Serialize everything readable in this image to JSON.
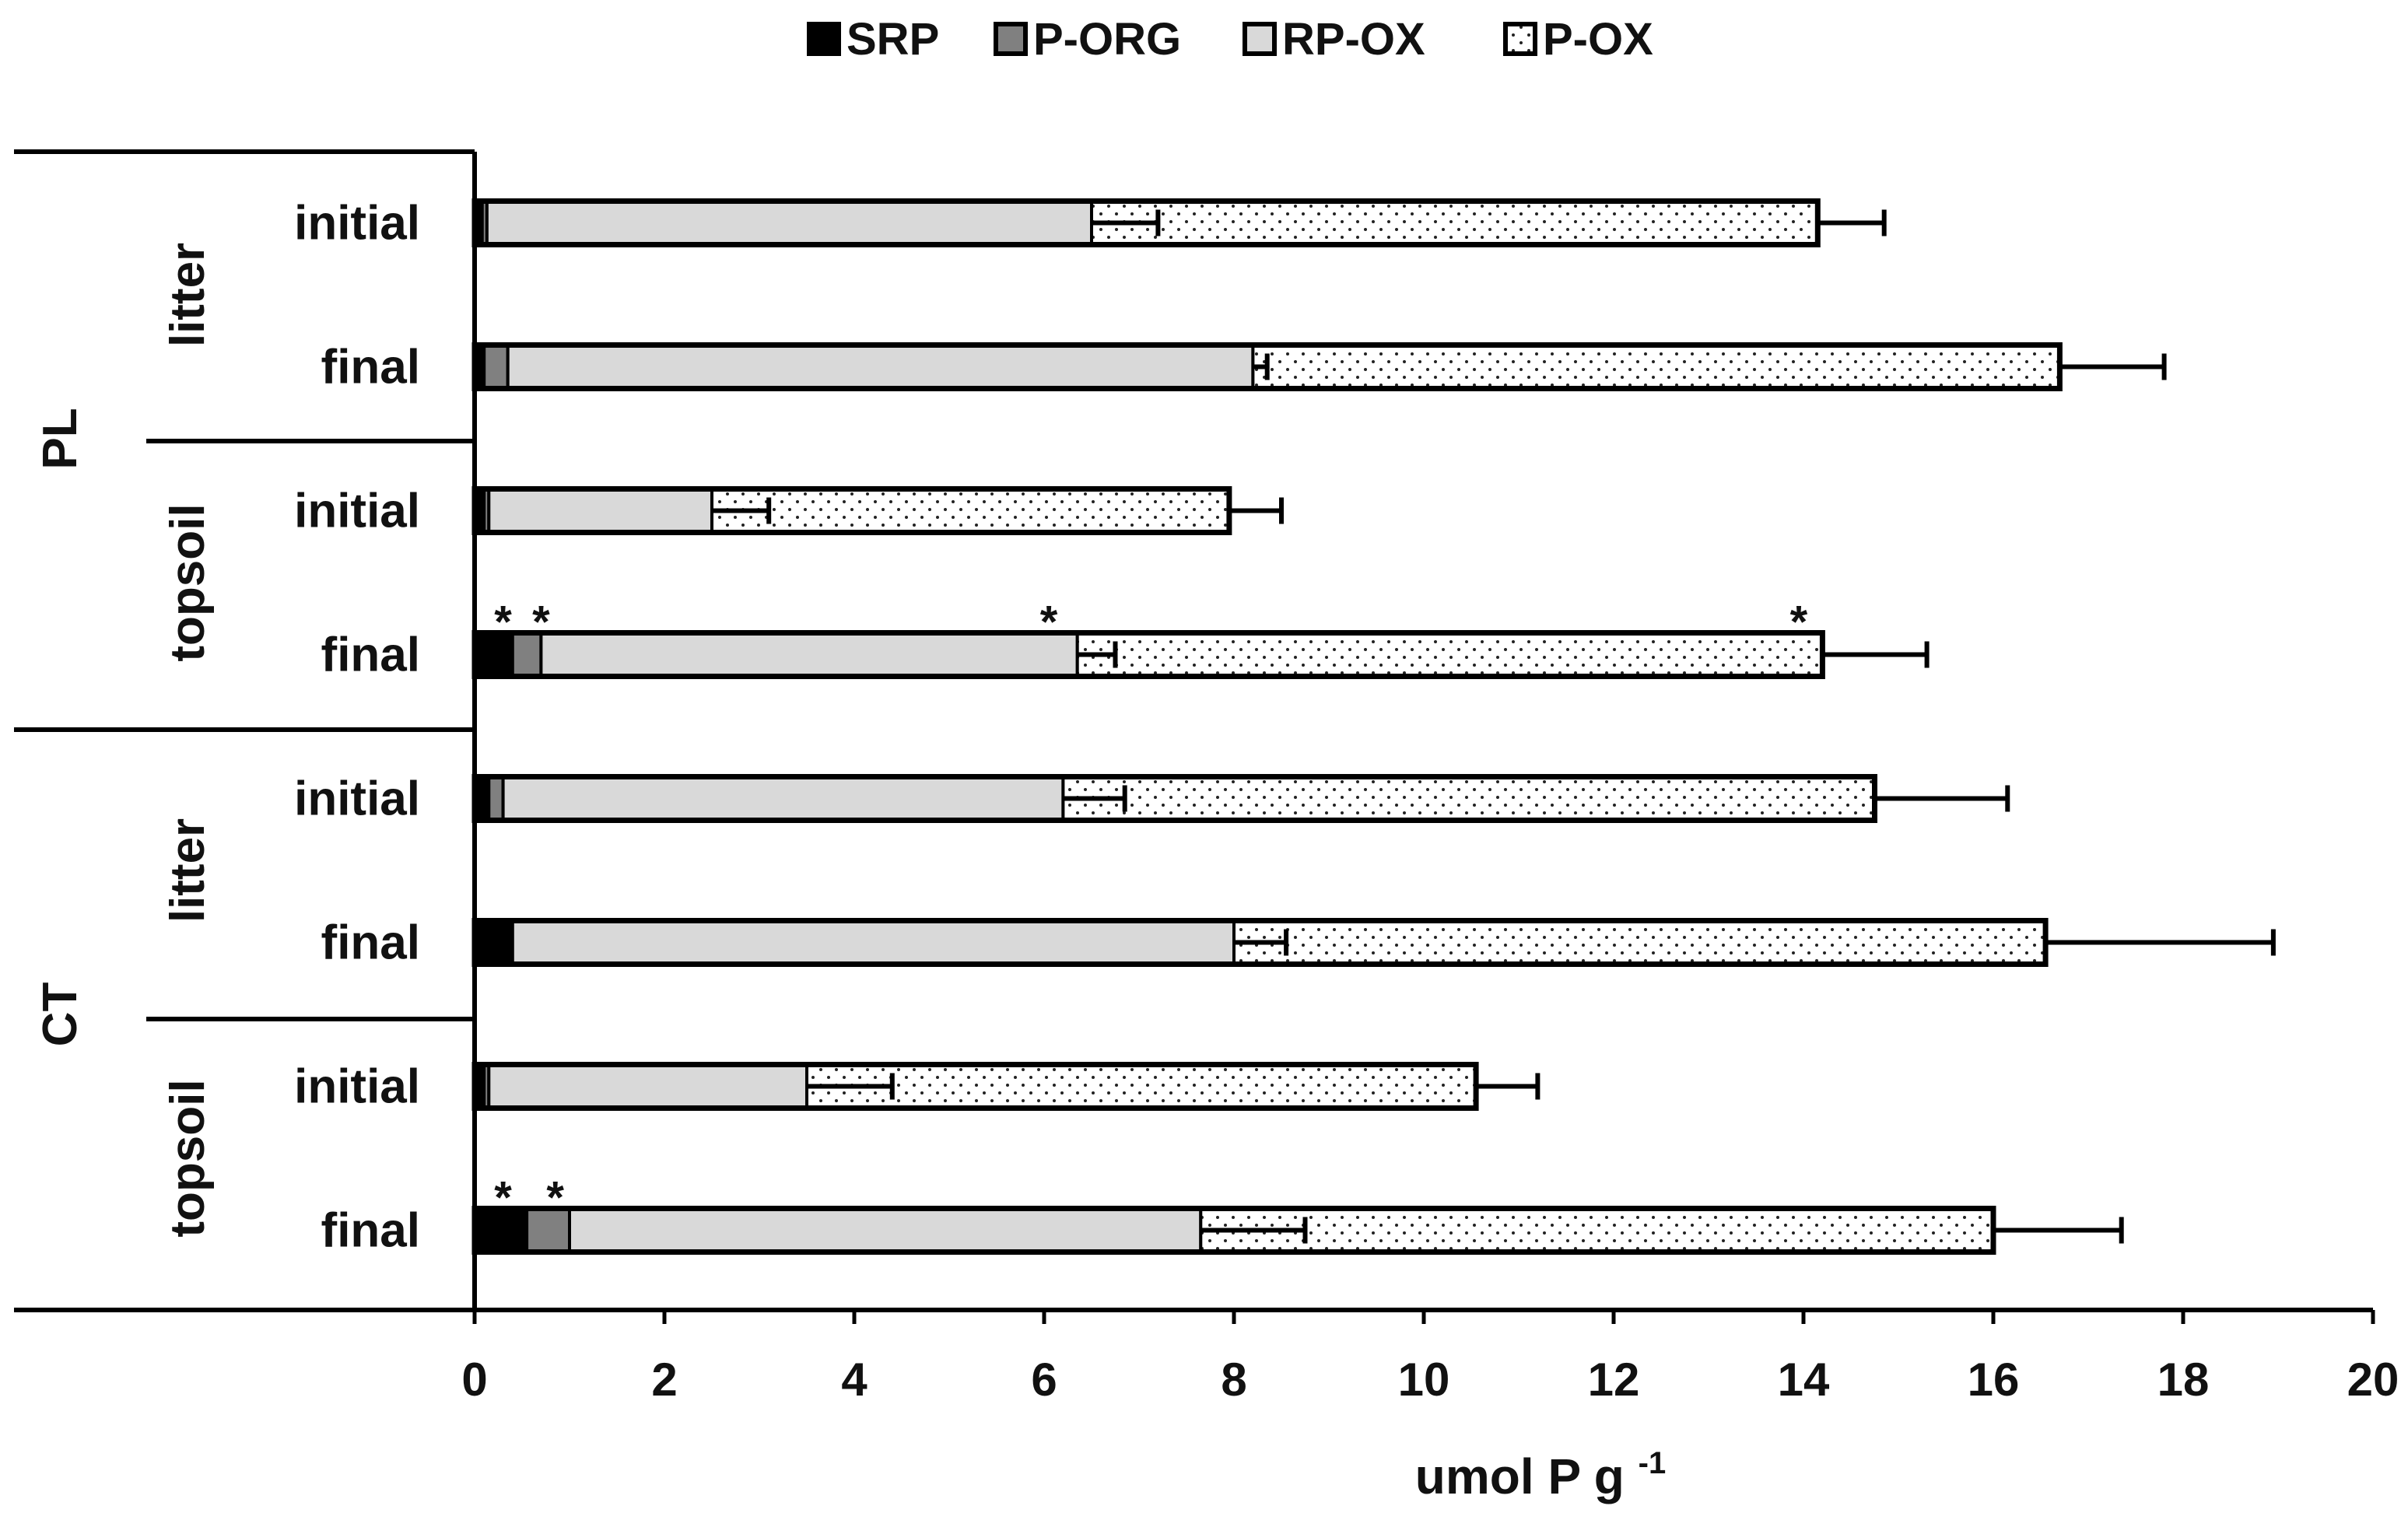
{
  "chart_data": {
    "type": "bar",
    "orientation": "horizontal",
    "stacked": true,
    "title": "",
    "xlabel": "umol P g",
    "xlabel_superscript": "-1",
    "ylabel": "",
    "xlim": [
      0,
      20
    ],
    "xticks": [
      0,
      2,
      4,
      6,
      8,
      10,
      12,
      14,
      16,
      18,
      20
    ],
    "legend_position": "top",
    "legend": [
      "SRP",
      "P-ORG",
      "RP-OX",
      "P-OX"
    ],
    "groups": [
      {
        "name": "PL",
        "subgroups": [
          {
            "name": "litter"
          },
          {
            "name": "topsoil"
          }
        ]
      },
      {
        "name": "CT",
        "subgroups": [
          {
            "name": "litter"
          },
          {
            "name": "topsoil"
          }
        ]
      }
    ],
    "categories": [
      "initial",
      "final",
      "initial",
      "final",
      "initial",
      "final",
      "initial",
      "final"
    ],
    "series": [
      {
        "name": "SRP",
        "fill": "#000000",
        "pattern": "solid",
        "values": [
          0.08,
          0.1,
          0.1,
          0.4,
          0.15,
          0.4,
          0.1,
          0.55
        ]
      },
      {
        "name": "P-ORG",
        "fill": "#808080",
        "pattern": "solid",
        "values": [
          0.05,
          0.25,
          0.05,
          0.3,
          0.15,
          0.0,
          0.05,
          0.45
        ]
      },
      {
        "name": "RP-OX",
        "fill": "#d9d9d9",
        "pattern": "solid",
        "values": [
          6.37,
          7.85,
          2.35,
          5.65,
          5.9,
          7.6,
          3.35,
          6.65
        ]
      },
      {
        "name": "P-OX",
        "fill": "#ffffff",
        "pattern": "dotted",
        "values": [
          7.65,
          8.5,
          5.45,
          7.85,
          8.55,
          8.55,
          7.05,
          8.35
        ]
      }
    ],
    "error_bars": [
      {
        "series": "RP-OX",
        "plus": [
          0.7,
          0.15,
          0.6,
          0.4,
          0.65,
          0.55,
          0.9,
          1.1
        ]
      },
      {
        "series": "P-OX",
        "plus": [
          0.7,
          1.1,
          0.55,
          1.1,
          1.4,
          2.4,
          0.65,
          1.35
        ]
      }
    ],
    "annotations": [
      {
        "bar": 3,
        "x": 0.3,
        "text": "*"
      },
      {
        "bar": 3,
        "x": 0.7,
        "text": "*"
      },
      {
        "bar": 3,
        "x": 6.05,
        "text": "*"
      },
      {
        "bar": 3,
        "x": 13.95,
        "text": "*"
      },
      {
        "bar": 7,
        "x": 0.3,
        "text": "*"
      },
      {
        "bar": 7,
        "x": 0.85,
        "text": "*"
      }
    ],
    "grid": false
  }
}
